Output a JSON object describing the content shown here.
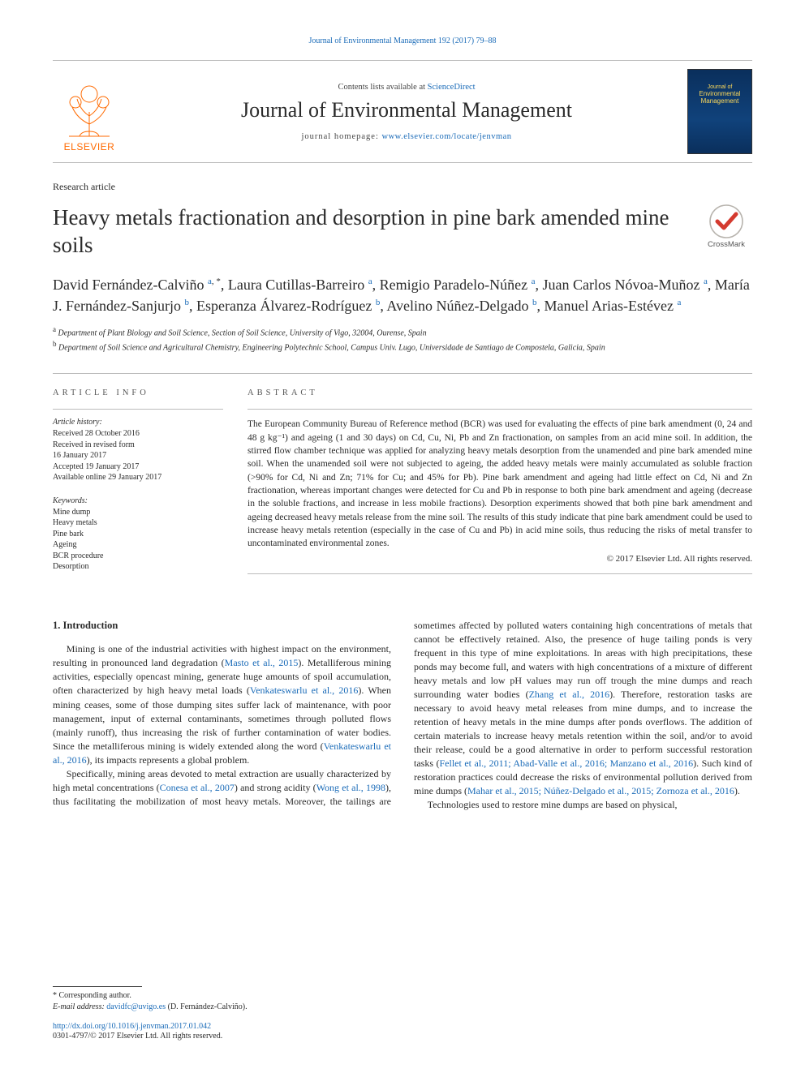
{
  "top_link": "Journal of Environmental Management 192 (2017) 79–88",
  "header": {
    "contents_prefix": "Contents lists available at ",
    "contents_link_text": "ScienceDirect",
    "journal_name": "Journal of Environmental Management",
    "homepage_prefix": "journal homepage: ",
    "homepage_link_text": "www.elsevier.com/locate/jenvman",
    "publisher_word": "ELSEVIER",
    "cover_line1": "Journal of",
    "cover_line2": "Environmental",
    "cover_line3": "Management"
  },
  "article": {
    "type": "Research article",
    "title": "Heavy metals fractionation and desorption in pine bark amended mine soils",
    "crossmark_label": "CrossMark",
    "authors_html": "David Fernández-Calviño <sup><a>a</a>, *</sup>, Laura Cutillas-Barreiro <sup><a>a</a></sup>, Remigio Paradelo-Núñez <sup><a>a</a></sup>, Juan Carlos Nóvoa-Muñoz <sup><a>a</a></sup>, María J. Fernández-Sanjurjo <sup><a>b</a></sup>, Esperanza Álvarez-Rodríguez <sup><a>b</a></sup>, Avelino Núñez-Delgado <sup><a>b</a></sup>, Manuel Arias-Estévez <sup><a>a</a></sup>",
    "affiliations": [
      {
        "sup": "a",
        "text": "Department of Plant Biology and Soil Science, Section of Soil Science, University of Vigo, 32004, Ourense, Spain"
      },
      {
        "sup": "b",
        "text": "Department of Soil Science and Agricultural Chemistry, Engineering Polytechnic School, Campus Univ. Lugo, Universidade de Santiago de Compostela, Galicia, Spain"
      }
    ]
  },
  "info": {
    "head": "ARTICLE INFO",
    "history_label": "Article history:",
    "history": [
      "Received 28 October 2016",
      "Received in revised form",
      "16 January 2017",
      "Accepted 19 January 2017",
      "Available online 29 January 2017"
    ],
    "keywords_label": "Keywords:",
    "keywords": [
      "Mine dump",
      "Heavy metals",
      "Pine bark",
      "Ageing",
      "BCR procedure",
      "Desorption"
    ]
  },
  "abstract": {
    "head": "ABSTRACT",
    "text": "The European Community Bureau of Reference method (BCR) was used for evaluating the effects of pine bark amendment (0, 24 and 48 g kg⁻¹) and ageing (1 and 30 days) on Cd, Cu, Ni, Pb and Zn fractionation, on samples from an acid mine soil. In addition, the stirred flow chamber technique was applied for analyzing heavy metals desorption from the unamended and pine bark amended mine soil. When the unamended soil were not subjected to ageing, the added heavy metals were mainly accumulated as soluble fraction (>90% for Cd, Ni and Zn; 71% for Cu; and 45% for Pb). Pine bark amendment and ageing had little effect on Cd, Ni and Zn fractionation, whereas important changes were detected for Cu and Pb in response to both pine bark amendment and ageing (decrease in the soluble fractions, and increase in less mobile fractions). Desorption experiments showed that both pine bark amendment and ageing decreased heavy metals release from the mine soil. The results of this study indicate that pine bark amendment could be used to increase heavy metals retention (especially in the case of Cu and Pb) in acid mine soils, thus reducing the risks of metal transfer to uncontaminated environmental zones.",
    "copyright": "© 2017 Elsevier Ltd. All rights reserved."
  },
  "body": {
    "section_heading": "1. Introduction",
    "p1": "Mining is one of the industrial activities with highest impact on the environment, resulting in pronounced land degradation (<span class=\"ref\">Masto et al., 2015</span>). Metalliferous mining activities, especially opencast mining, generate huge amounts of spoil accumulation, often characterized by high heavy metal loads (<span class=\"ref\">Venkateswarlu et al., 2016</span>). When mining ceases, some of those dumping sites suffer lack of maintenance, with poor management, input of external contaminants, sometimes through polluted flows (mainly runoff), thus increasing the risk of further contamination of water bodies. Since the metalliferous mining is widely extended along the word (<span class=\"ref\">Venkateswarlu et al., 2016</span>), its impacts represents a global problem.",
    "p2": "Specifically, mining areas devoted to metal extraction are usually characterized by high metal concentrations (<span class=\"ref\">Conesa et al., 2007</span>) and strong acidity (<span class=\"ref\">Wong et al., 1998</span>), thus facilitating the mobilization of most heavy metals. Moreover, the tailings are sometimes affected by polluted waters containing high concentrations of metals that cannot be effectively retained. Also, the presence of huge tailing ponds is very frequent in this type of mine exploitations. In areas with high precipitations, these ponds may become full, and waters with high concentrations of a mixture of different heavy metals and low pH values may run off trough the mine dumps and reach surrounding water bodies (<span class=\"ref\">Zhang et al., 2016</span>). Therefore, restoration tasks are necessary to avoid heavy metal releases from mine dumps, and to increase the retention of heavy metals in the mine dumps after ponds overflows. The addition of certain materials to increase heavy metals retention within the soil, and/or to avoid their release, could be a good alternative in order to perform successful restoration tasks (<span class=\"ref\">Fellet et al., 2011; Abad-Valle et al., 2016; Manzano et al., 2016</span>). Such kind of restoration practices could decrease the risks of environmental pollution derived from mine dumps (<span class=\"ref\">Mahar et al., 2015; Núñez-Delgado et al., 2015; Zornoza et al., 2016</span>).",
    "p3": "Technologies used to restore mine dumps are based on physical,"
  },
  "footer": {
    "corr_label": "* Corresponding author.",
    "email_label": "E-mail address:",
    "email": "davidfc@uvigo.es",
    "email_person": "(D. Fernández-Calviño).",
    "doi": "http://dx.doi.org/10.1016/j.jenvman.2017.01.042",
    "issn": "0301-4797/© 2017 Elsevier Ltd. All rights reserved."
  },
  "colors": {
    "link": "#1a6bb8",
    "orange": "#ff6a00",
    "cover_bg": "#0a2f5c",
    "cover_text": "#fbd85b",
    "rule": "#bbbbbb",
    "text": "#2a2a2a"
  }
}
